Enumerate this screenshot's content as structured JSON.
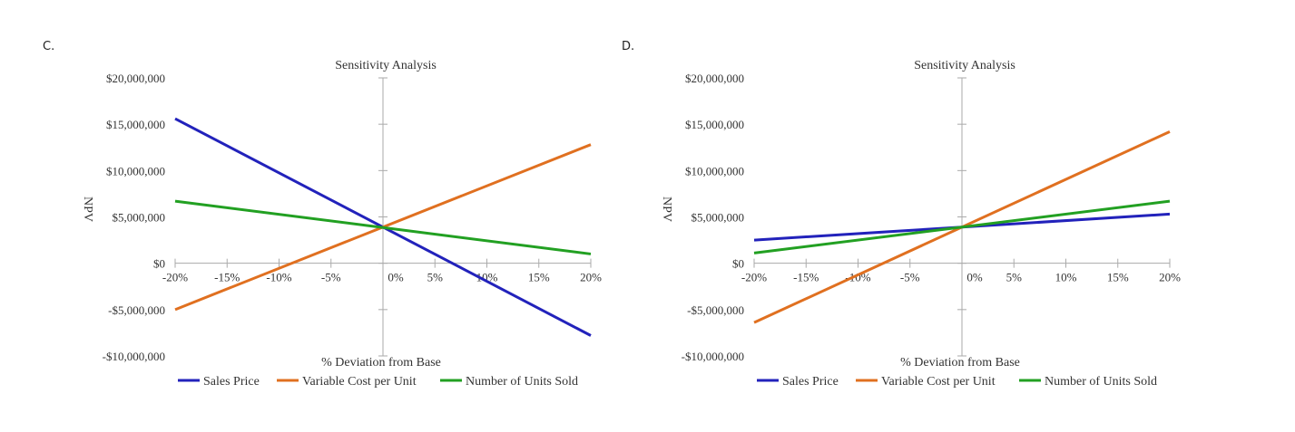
{
  "chart_data": [
    {
      "panel_label": "C.",
      "type": "line",
      "title": "Sensitivity Analysis",
      "xlabel": "% Deviation from Base",
      "ylabel": "NPV",
      "x": [
        -20,
        20
      ],
      "x_ticks": [
        -20,
        -15,
        -10,
        -5,
        0,
        5,
        10,
        15,
        20
      ],
      "x_tick_labels": [
        "-20%",
        "-15%",
        "-10%",
        "-5%",
        "0%",
        "5%",
        "10%",
        "15%",
        "20%"
      ],
      "y_ticks": [
        20000000,
        15000000,
        10000000,
        5000000,
        0,
        -5000000,
        -10000000
      ],
      "y_tick_labels": [
        "$20,000,000",
        "$15,000,000",
        "$10,000,000",
        "$5,000,000",
        "$0",
        "-$5,000,000",
        "-$10,000,000"
      ],
      "ylim": [
        -10000000,
        20000000
      ],
      "xlim": [
        -20,
        20
      ],
      "legend_position": "bottom",
      "series": [
        {
          "name": "Sales Price",
          "color": "#2222bb",
          "values": [
            15600000,
            -7800000
          ]
        },
        {
          "name": "Variable Cost per Unit",
          "color": "#e07020",
          "values": [
            -5000000,
            12800000
          ]
        },
        {
          "name": "Number of Units Sold",
          "color": "#22a022",
          "values": [
            6700000,
            1000000
          ]
        }
      ]
    },
    {
      "panel_label": "D.",
      "type": "line",
      "title": "Sensitivity Analysis",
      "xlabel": "% Deviation from Base",
      "ylabel": "NPV",
      "x": [
        -20,
        20
      ],
      "x_ticks": [
        -20,
        -15,
        -10,
        -5,
        0,
        5,
        10,
        15,
        20
      ],
      "x_tick_labels": [
        "-20%",
        "-15%",
        "-10%",
        "-5%",
        "0%",
        "5%",
        "10%",
        "15%",
        "20%"
      ],
      "y_ticks": [
        20000000,
        15000000,
        10000000,
        5000000,
        0,
        -5000000,
        -10000000
      ],
      "y_tick_labels": [
        "$20,000,000",
        "$15,000,000",
        "$10,000,000",
        "$5,000,000",
        "$0",
        "-$5,000,000",
        "-$10,000,000"
      ],
      "ylim": [
        -10000000,
        20000000
      ],
      "xlim": [
        -20,
        20
      ],
      "legend_position": "bottom",
      "series": [
        {
          "name": "Sales Price",
          "color": "#2222bb",
          "values": [
            2500000,
            5300000
          ]
        },
        {
          "name": "Variable Cost per Unit",
          "color": "#e07020",
          "values": [
            -6400000,
            14200000
          ]
        },
        {
          "name": "Number of Units Sold",
          "color": "#22a022",
          "values": [
            1100000,
            6700000
          ]
        }
      ]
    }
  ]
}
